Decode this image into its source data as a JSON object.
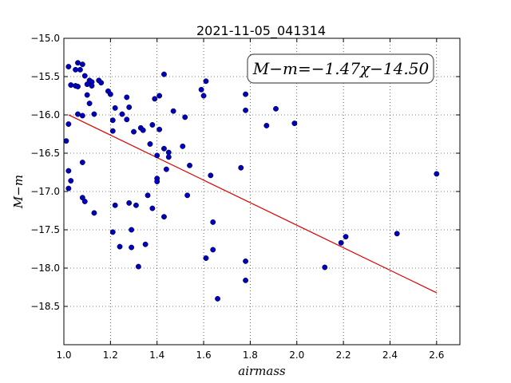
{
  "chart_data": {
    "type": "scatter",
    "title": "2021-11-05_041314",
    "xlabel": "airmass",
    "ylabel": "M−m",
    "xlim": [
      1.0,
      2.7
    ],
    "ylim": [
      -15.0,
      -19.0
    ],
    "y_inverted": true,
    "grid": true,
    "x_ticks": [
      "1.0",
      "1.2",
      "1.4",
      "1.6",
      "1.8",
      "2.0",
      "2.2",
      "2.4",
      "2.6"
    ],
    "y_ticks": [
      "−15.0",
      "−15.5",
      "−16.0",
      "−16.5",
      "−17.0",
      "−17.5",
      "−18.0",
      "−18.5"
    ],
    "annotation": "M−m=−1.47χ−14.50",
    "fit": {
      "slope": -1.47,
      "intercept": -14.5,
      "x_range": [
        1.02,
        2.6
      ],
      "color": "#dd0000"
    },
    "point_color": "#0000bb",
    "points": [
      [
        1.02,
        -15.37
      ],
      [
        1.03,
        -15.61
      ],
      [
        1.05,
        -15.62
      ],
      [
        1.05,
        -15.41
      ],
      [
        1.06,
        -15.32
      ],
      [
        1.07,
        -15.41
      ],
      [
        1.06,
        -15.63
      ],
      [
        1.08,
        -15.34
      ],
      [
        1.09,
        -15.49
      ],
      [
        1.1,
        -15.6
      ],
      [
        1.11,
        -15.55
      ],
      [
        1.12,
        -15.57
      ],
      [
        1.12,
        -15.62
      ],
      [
        1.1,
        -15.74
      ],
      [
        1.11,
        -15.85
      ],
      [
        1.15,
        -15.55
      ],
      [
        1.16,
        -15.58
      ],
      [
        1.06,
        -15.99
      ],
      [
        1.08,
        -16.01
      ],
      [
        1.13,
        -15.99
      ],
      [
        1.02,
        -16.12
      ],
      [
        1.01,
        -16.34
      ],
      [
        1.19,
        -15.69
      ],
      [
        1.2,
        -15.73
      ],
      [
        1.22,
        -15.91
      ],
      [
        1.21,
        -16.07
      ],
      [
        1.21,
        -16.21
      ],
      [
        1.25,
        -15.99
      ],
      [
        1.27,
        -15.77
      ],
      [
        1.28,
        -15.9
      ],
      [
        1.27,
        -16.06
      ],
      [
        1.3,
        -16.22
      ],
      [
        1.33,
        -16.17
      ],
      [
        1.34,
        -16.2
      ],
      [
        1.38,
        -16.13
      ],
      [
        1.39,
        -15.79
      ],
      [
        1.41,
        -15.75
      ],
      [
        1.43,
        -15.47
      ],
      [
        1.41,
        -16.19
      ],
      [
        1.37,
        -16.38
      ],
      [
        1.4,
        -16.53
      ],
      [
        1.43,
        -16.44
      ],
      [
        1.45,
        -16.49
      ],
      [
        1.45,
        -16.55
      ],
      [
        1.47,
        -15.95
      ],
      [
        1.51,
        -16.41
      ],
      [
        1.52,
        -16.03
      ],
      [
        1.59,
        -15.67
      ],
      [
        1.6,
        -15.75
      ],
      [
        1.61,
        -15.56
      ],
      [
        1.08,
        -16.62
      ],
      [
        1.02,
        -16.73
      ],
      [
        1.03,
        -16.86
      ],
      [
        1.02,
        -16.96
      ],
      [
        1.08,
        -17.08
      ],
      [
        1.09,
        -17.13
      ],
      [
        1.13,
        -17.28
      ],
      [
        1.22,
        -17.18
      ],
      [
        1.28,
        -17.15
      ],
      [
        1.31,
        -17.18
      ],
      [
        1.36,
        -17.05
      ],
      [
        1.38,
        -17.22
      ],
      [
        1.4,
        -16.83
      ],
      [
        1.4,
        -16.87
      ],
      [
        1.43,
        -17.33
      ],
      [
        1.44,
        -16.71
      ],
      [
        1.54,
        -16.66
      ],
      [
        1.53,
        -17.05
      ],
      [
        1.63,
        -16.79
      ],
      [
        1.64,
        -17.4
      ],
      [
        1.21,
        -17.53
      ],
      [
        1.24,
        -17.72
      ],
      [
        1.29,
        -17.73
      ],
      [
        1.29,
        -17.5
      ],
      [
        1.35,
        -17.69
      ],
      [
        1.32,
        -17.98
      ],
      [
        1.61,
        -17.87
      ],
      [
        1.64,
        -17.76
      ],
      [
        1.66,
        -18.4
      ],
      [
        1.76,
        -16.69
      ],
      [
        1.78,
        -15.94
      ],
      [
        1.78,
        -15.73
      ],
      [
        1.87,
        -16.14
      ],
      [
        1.91,
        -15.92
      ],
      [
        1.99,
        -16.11
      ],
      [
        1.78,
        -17.91
      ],
      [
        1.78,
        -18.16
      ],
      [
        2.12,
        -17.99
      ],
      [
        2.19,
        -17.67
      ],
      [
        2.21,
        -17.59
      ],
      [
        2.43,
        -17.55
      ],
      [
        2.6,
        -16.77
      ]
    ]
  }
}
